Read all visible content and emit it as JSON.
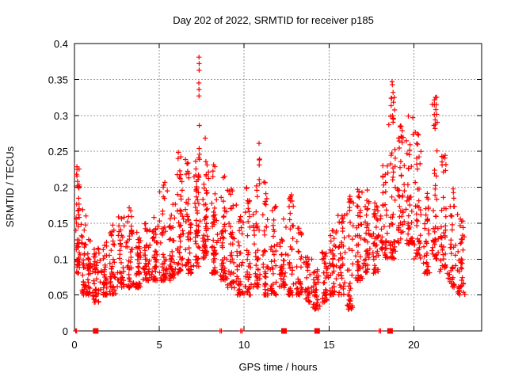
{
  "chart_data": {
    "type": "scatter",
    "title": "Day 202 of 2022, SRMTID for receiver p185",
    "xlabel": "GPS time / hours",
    "ylabel": "SRMTID / TECUs",
    "x_axis": {
      "range": [
        0,
        24
      ],
      "ticks": [
        0,
        5,
        10,
        15,
        20
      ],
      "tick_labels": [
        "0",
        "5",
        "10",
        "15",
        "20"
      ]
    },
    "y_axis": {
      "range": [
        0,
        0.4
      ],
      "ticks": [
        0,
        0.05,
        0.1,
        0.15,
        0.2,
        0.25,
        0.3,
        0.35,
        0.4
      ],
      "tick_labels": [
        "0",
        "0.05",
        "0.1",
        "0.15",
        "0.2",
        "0.25",
        "0.3",
        "0.35",
        "0.4"
      ]
    },
    "grid": true,
    "legend": "none",
    "marker": "plus",
    "marker_color": "#ff0000",
    "grid_color": "#9a9a9a",
    "axis_color": "#000000",
    "seed": 202,
    "y_bias_exponent": 1.7,
    "density_bands": [
      [
        0.05,
        0.35,
        48,
        0.08,
        0.23
      ],
      [
        0.35,
        0.7,
        36,
        0.05,
        0.17
      ],
      [
        0.7,
        1.0,
        32,
        0.05,
        0.13
      ],
      [
        1.0,
        1.5,
        42,
        0.04,
        0.12
      ],
      [
        1.5,
        2.0,
        40,
        0.05,
        0.13
      ],
      [
        2.0,
        2.5,
        40,
        0.05,
        0.15
      ],
      [
        2.5,
        3.0,
        40,
        0.06,
        0.16
      ],
      [
        3.0,
        3.5,
        44,
        0.06,
        0.175
      ],
      [
        3.5,
        4.0,
        40,
        0.06,
        0.14
      ],
      [
        4.0,
        4.5,
        40,
        0.07,
        0.15
      ],
      [
        4.5,
        5.0,
        40,
        0.07,
        0.16
      ],
      [
        5.0,
        5.5,
        44,
        0.07,
        0.21
      ],
      [
        5.5,
        6.0,
        40,
        0.07,
        0.185
      ],
      [
        6.0,
        6.5,
        48,
        0.08,
        0.25
      ],
      [
        6.5,
        7.0,
        48,
        0.08,
        0.24
      ],
      [
        7.0,
        7.5,
        50,
        0.09,
        0.26
      ],
      [
        7.5,
        8.0,
        50,
        0.1,
        0.27
      ],
      [
        8.0,
        8.5,
        46,
        0.08,
        0.235
      ],
      [
        8.5,
        9.0,
        44,
        0.07,
        0.22
      ],
      [
        9.0,
        9.5,
        40,
        0.06,
        0.2
      ],
      [
        9.5,
        10.0,
        38,
        0.05,
        0.18
      ],
      [
        10.0,
        10.5,
        38,
        0.05,
        0.2
      ],
      [
        10.5,
        11.0,
        40,
        0.06,
        0.24
      ],
      [
        11.0,
        11.5,
        40,
        0.05,
        0.21
      ],
      [
        11.5,
        12.0,
        38,
        0.05,
        0.18
      ],
      [
        12.0,
        12.5,
        38,
        0.06,
        0.17
      ],
      [
        12.5,
        13.0,
        40,
        0.05,
        0.19
      ],
      [
        13.0,
        13.5,
        34,
        0.05,
        0.15
      ],
      [
        13.5,
        14.0,
        34,
        0.04,
        0.11
      ],
      [
        14.0,
        14.5,
        36,
        0.03,
        0.09
      ],
      [
        14.5,
        15.0,
        40,
        0.04,
        0.11
      ],
      [
        15.0,
        15.5,
        40,
        0.05,
        0.14
      ],
      [
        15.5,
        16.0,
        40,
        0.05,
        0.17
      ],
      [
        16.0,
        16.5,
        40,
        0.03,
        0.19
      ],
      [
        16.5,
        17.0,
        44,
        0.07,
        0.2
      ],
      [
        17.0,
        17.5,
        40,
        0.08,
        0.2
      ],
      [
        17.5,
        18.0,
        38,
        0.08,
        0.18
      ],
      [
        18.0,
        18.5,
        40,
        0.1,
        0.23
      ],
      [
        18.5,
        19.0,
        50,
        0.1,
        0.35
      ],
      [
        19.0,
        19.5,
        46,
        0.12,
        0.3
      ],
      [
        19.5,
        20.0,
        46,
        0.12,
        0.3
      ],
      [
        20.0,
        20.5,
        40,
        0.1,
        0.28
      ],
      [
        20.5,
        21.0,
        34,
        0.08,
        0.2
      ],
      [
        21.0,
        21.5,
        44,
        0.1,
        0.33
      ],
      [
        21.5,
        22.0,
        40,
        0.08,
        0.25
      ],
      [
        22.0,
        22.5,
        38,
        0.06,
        0.2
      ],
      [
        22.5,
        23.1,
        40,
        0.045,
        0.17
      ]
    ],
    "outlier_points": [
      [
        7.34,
        0.381
      ],
      [
        7.35,
        0.372
      ],
      [
        7.35,
        0.363
      ],
      [
        7.33,
        0.345
      ],
      [
        7.34,
        0.336
      ],
      [
        7.34,
        0.327
      ],
      [
        7.36,
        0.286
      ],
      [
        7.35,
        0.254
      ],
      [
        7.37,
        0.246
      ],
      [
        10.88,
        0.261
      ],
      [
        10.9,
        0.238
      ],
      [
        10.89,
        0.231
      ],
      [
        10.91,
        0.205
      ],
      [
        18.72,
        0.347
      ],
      [
        18.78,
        0.332
      ],
      [
        18.85,
        0.325
      ],
      [
        21.28,
        0.325
      ],
      [
        21.32,
        0.315
      ],
      [
        21.3,
        0.308
      ],
      [
        0.15,
        0.225
      ],
      [
        0.12,
        0.218
      ],
      [
        0.18,
        0.208
      ]
    ],
    "zero_line_plus_markers": [
      0.07,
      0.12,
      8.58,
      8.66,
      9.8,
      9.88,
      17.96,
      18.04
    ],
    "zero_line_square_markers": [
      1.25,
      12.35,
      14.3,
      18.6
    ]
  }
}
